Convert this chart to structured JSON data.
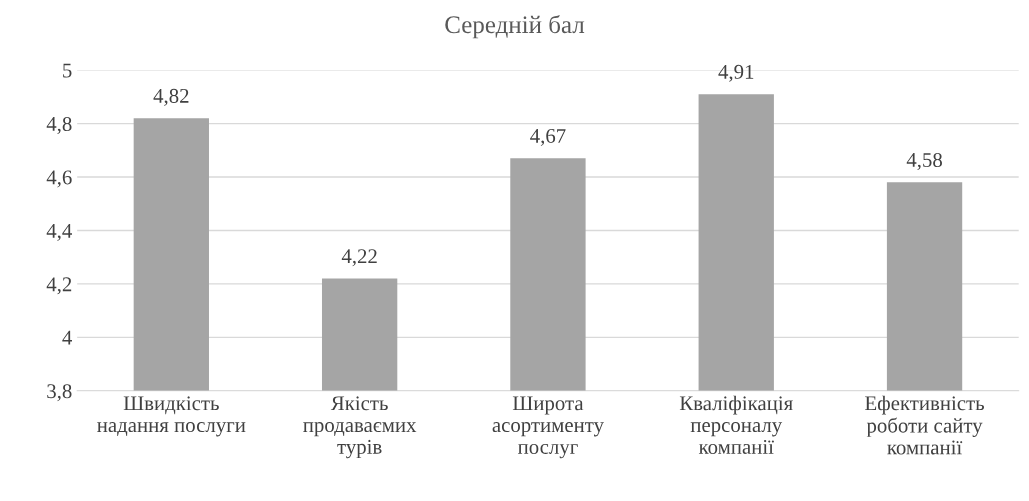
{
  "chart_data": {
    "type": "bar",
    "title": "Середній бал",
    "categories": [
      "Швидкість надання послуги",
      "Якість продаваємих турів",
      "Широта асортименту послуг",
      "Кваліфікація персоналу компанії",
      "Ефективність роботи сайту компанії"
    ],
    "values": [
      4.82,
      4.22,
      4.67,
      4.91,
      4.58
    ],
    "value_labels": [
      "4,82",
      "4,22",
      "4,67",
      "4,91",
      "4,58"
    ],
    "color": "#a5a5a5",
    "ylim": [
      3.8,
      5
    ],
    "yticks": [
      {
        "value": 3.8,
        "label": "3,8"
      },
      4,
      {
        "value": 4.2,
        "label": "4,2"
      },
      {
        "value": 4.4,
        "label": "4,4"
      },
      {
        "value": 4.6,
        "label": "4,6"
      },
      {
        "value": 4.8,
        "label": "4,8"
      },
      5
    ],
    "grid": "y",
    "legend": false
  }
}
